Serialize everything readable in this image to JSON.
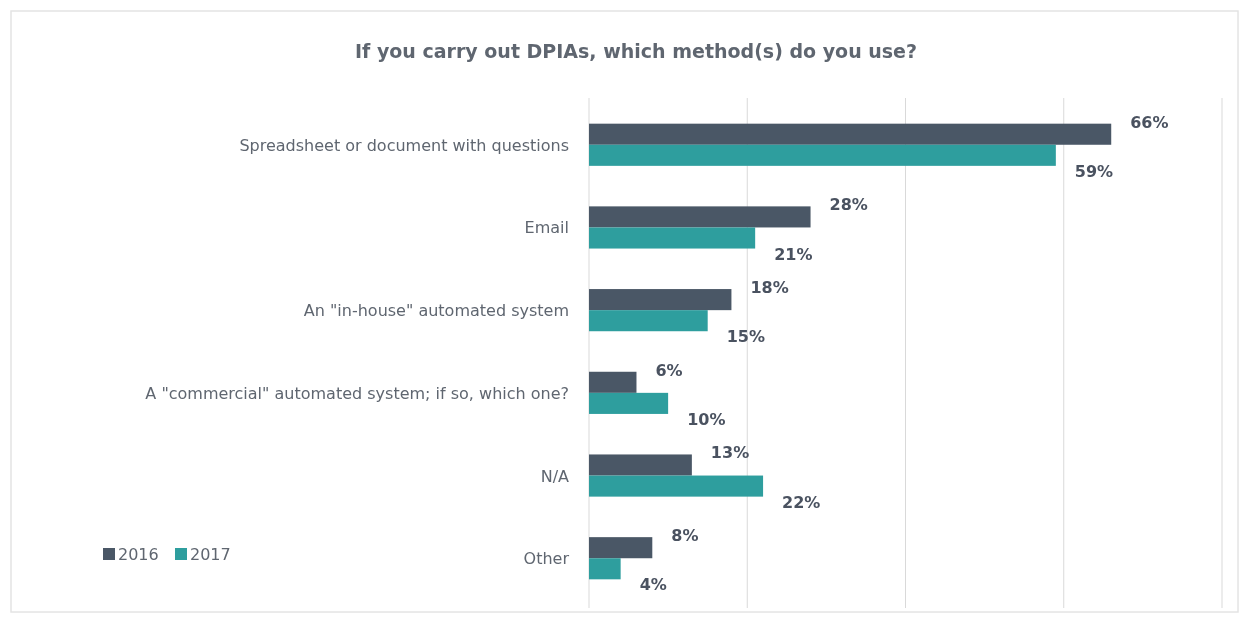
{
  "chart_data": {
    "type": "bar",
    "orientation": "horizontal",
    "title": "If you carry out DPIAs, which method(s) do you use?",
    "categories": [
      "Spreadsheet or document with questions",
      "Email",
      "An \"in-house\" automated system",
      "A \"commercial\" automated system; if so, which one?",
      "N/A",
      "Other"
    ],
    "series": [
      {
        "name": "2016",
        "color": "#4a5766",
        "values": [
          66,
          28,
          18,
          6,
          13,
          8
        ],
        "value_labels": [
          "66%",
          "28%",
          "18%",
          "6%",
          "13%",
          "8%"
        ]
      },
      {
        "name": "2017",
        "color": "#2e9e9e",
        "values": [
          59,
          21,
          15,
          10,
          22,
          4
        ],
        "value_labels": [
          "59%",
          "21%",
          "15%",
          "10%",
          "22%",
          "4%"
        ]
      }
    ],
    "xlim": [
      0,
      80
    ],
    "xticks": [
      {
        "value": 0,
        "label": null
      },
      {
        "value": 20,
        "label": null
      },
      {
        "value": 40,
        "label": null
      },
      {
        "value": 60,
        "label": null
      },
      {
        "value": 80,
        "label": null
      }
    ],
    "tick_labels": "y",
    "grid": "x",
    "legend": "bottom left"
  }
}
